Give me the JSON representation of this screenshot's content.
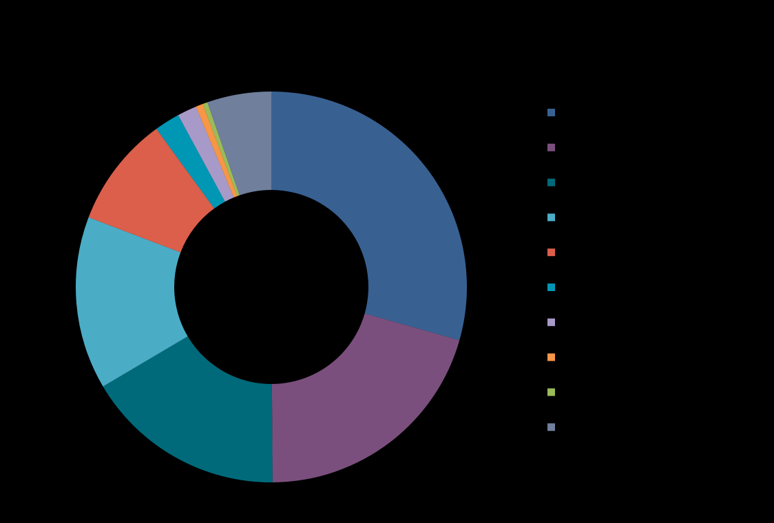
{
  "chart_data": {
    "type": "donut",
    "values": [
      29.4,
      20.5,
      16.6,
      14.3,
      9.2,
      2.1,
      1.6,
      0.6,
      0.4,
      5.3
    ],
    "colors": [
      "#386192",
      "#7b4f7d",
      "#006a7a",
      "#4bacc6",
      "#db5f4a",
      "#0097b5",
      "#a89ac8",
      "#f79646",
      "#9bbb59",
      "#6f7f9c"
    ],
    "legend": "right"
  }
}
